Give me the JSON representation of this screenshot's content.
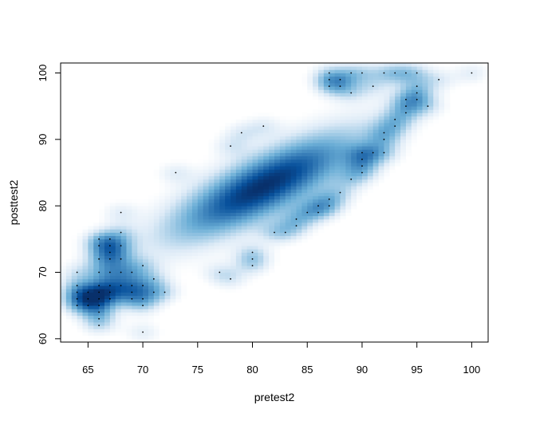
{
  "chart_data": {
    "type": "scatter",
    "subtype": "smoothScatter (kernel density estimate)",
    "title": "",
    "xlabel": "pretest2",
    "ylabel": "posttest2",
    "xlim": [
      62.5,
      101.5
    ],
    "ylim": [
      59.5,
      101.5
    ],
    "x_ticks": [
      65,
      70,
      75,
      80,
      85,
      90,
      95,
      100
    ],
    "y_ticks": [
      60,
      70,
      80,
      90,
      100
    ],
    "density_color": "#08519c",
    "grid": false,
    "legend": "none",
    "density_ridge": {
      "slope": 0.93,
      "intercept": 7.5,
      "spread_along": 7.5,
      "spread_across": 2.6,
      "peak": [
        81,
        83
      ]
    },
    "outlier_points": [
      [
        64,
        65
      ],
      [
        64,
        66
      ],
      [
        64,
        67
      ],
      [
        64,
        68
      ],
      [
        64,
        70
      ],
      [
        65,
        65
      ],
      [
        65,
        66
      ],
      [
        65,
        67
      ],
      [
        66,
        62
      ],
      [
        66,
        63
      ],
      [
        66,
        64
      ],
      [
        66,
        65
      ],
      [
        66,
        66
      ],
      [
        66,
        67
      ],
      [
        66,
        68
      ],
      [
        66,
        70
      ],
      [
        66,
        72
      ],
      [
        66,
        74
      ],
      [
        66,
        75
      ],
      [
        67,
        66
      ],
      [
        67,
        67
      ],
      [
        67,
        68
      ],
      [
        67,
        70
      ],
      [
        67,
        72
      ],
      [
        67,
        73
      ],
      [
        67,
        74
      ],
      [
        67,
        75
      ],
      [
        68,
        68
      ],
      [
        68,
        70
      ],
      [
        68,
        72
      ],
      [
        68,
        74
      ],
      [
        68,
        76
      ],
      [
        68,
        79
      ],
      [
        69,
        66
      ],
      [
        69,
        67
      ],
      [
        69,
        68
      ],
      [
        69,
        70
      ],
      [
        70,
        61
      ],
      [
        70,
        65
      ],
      [
        70,
        66
      ],
      [
        70,
        68
      ],
      [
        70,
        71
      ],
      [
        71,
        67
      ],
      [
        71,
        69
      ],
      [
        72,
        67
      ],
      [
        73,
        85
      ],
      [
        77,
        70
      ],
      [
        78,
        69
      ],
      [
        78,
        89
      ],
      [
        79,
        91
      ],
      [
        80,
        71
      ],
      [
        80,
        72
      ],
      [
        80,
        73
      ],
      [
        81,
        92
      ],
      [
        82,
        76
      ],
      [
        83,
        76
      ],
      [
        84,
        77
      ],
      [
        84,
        78
      ],
      [
        85,
        79
      ],
      [
        86,
        79
      ],
      [
        86,
        80
      ],
      [
        87,
        80
      ],
      [
        87,
        81
      ],
      [
        87,
        98
      ],
      [
        87,
        99
      ],
      [
        87,
        100
      ],
      [
        88,
        82
      ],
      [
        88,
        98
      ],
      [
        88,
        99
      ],
      [
        89,
        84
      ],
      [
        89,
        97
      ],
      [
        89,
        100
      ],
      [
        90,
        85
      ],
      [
        90,
        86
      ],
      [
        90,
        87
      ],
      [
        90,
        88
      ],
      [
        90,
        100
      ],
      [
        91,
        88
      ],
      [
        91,
        98
      ],
      [
        92,
        88
      ],
      [
        92,
        90
      ],
      [
        92,
        91
      ],
      [
        92,
        100
      ],
      [
        93,
        92
      ],
      [
        93,
        93
      ],
      [
        93,
        100
      ],
      [
        94,
        94
      ],
      [
        94,
        95
      ],
      [
        94,
        96
      ],
      [
        94,
        100
      ],
      [
        95,
        96
      ],
      [
        95,
        97
      ],
      [
        95,
        98
      ],
      [
        95,
        100
      ],
      [
        96,
        95
      ],
      [
        97,
        99
      ],
      [
        100,
        100
      ]
    ]
  }
}
